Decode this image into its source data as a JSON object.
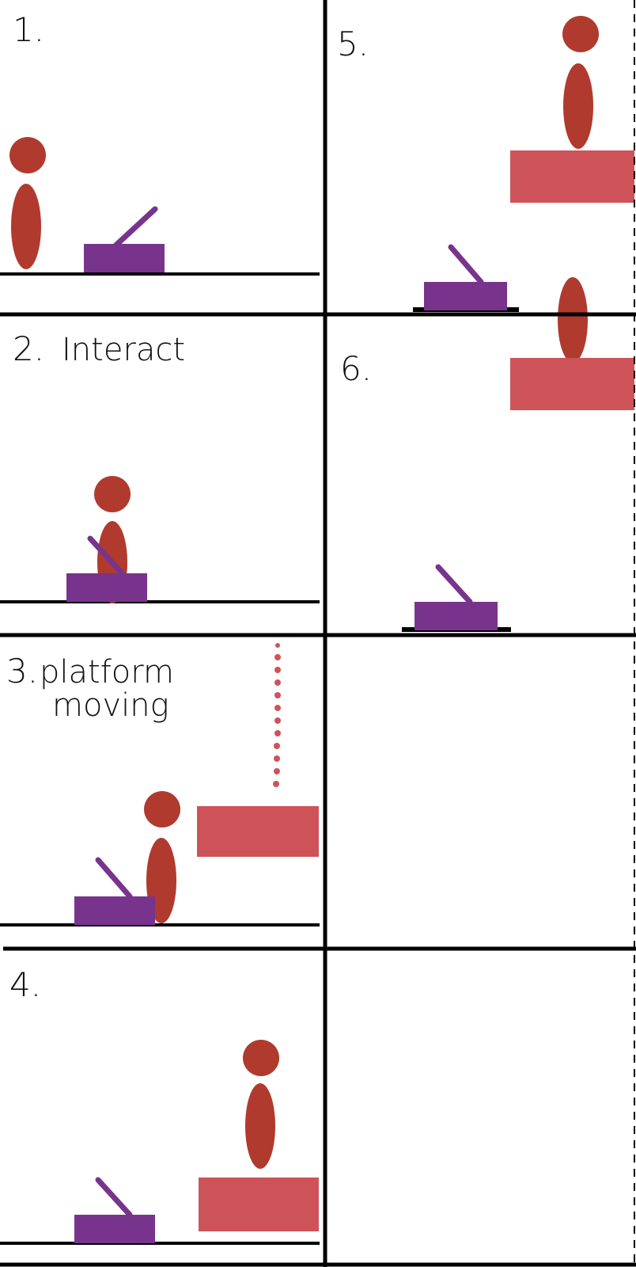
{
  "colors": {
    "ink": "#000000",
    "character": "#b03a2e",
    "lever": "#78348c",
    "platform": "#ce5359",
    "background": "#ffffff"
  },
  "panels": [
    {
      "id": "1",
      "label": "1.",
      "caption": ""
    },
    {
      "id": "2",
      "label": "2.",
      "caption": "Interact"
    },
    {
      "id": "3",
      "label": "3.",
      "caption_line1": "platform",
      "caption_line2": "moving"
    },
    {
      "id": "4",
      "label": "4.",
      "caption": ""
    },
    {
      "id": "5",
      "label": "5.",
      "caption": ""
    },
    {
      "id": "6",
      "label": "6.",
      "caption": ""
    }
  ]
}
